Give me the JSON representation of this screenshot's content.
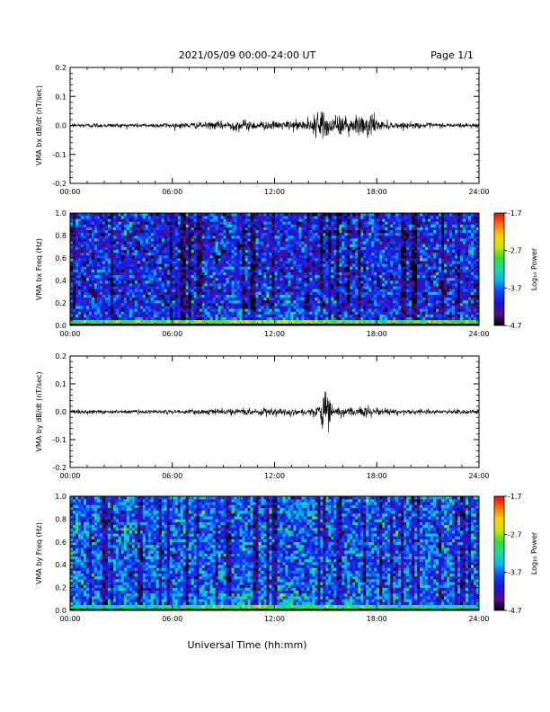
{
  "header": {
    "title": "2021/05/09  00:00-24:00 UT",
    "page": "Page 1/1"
  },
  "footer": {
    "xlabel": "Universal Time (hh:mm)"
  },
  "colors": {
    "trace": "#000000",
    "background": "#ffffff",
    "colormap": [
      "#000000",
      "#5a0a8c",
      "#1a10d8",
      "#0a40ff",
      "#00b4ff",
      "#10e0a0",
      "#30e030",
      "#c8e800",
      "#ffd000",
      "#ff7000",
      "#ff0000"
    ]
  },
  "chart_data": [
    {
      "type": "line",
      "ylabel": "VMA bx dB/dt (nT/sec)",
      "xlim": [
        0,
        24
      ],
      "ylim": [
        -0.2,
        0.2
      ],
      "x_ticks": [
        "00:00",
        "06:00",
        "12:00",
        "18:00",
        "24:00"
      ],
      "y_ticks": [
        "-0.2",
        "-0.1",
        "0.0",
        "0.1",
        "0.2"
      ],
      "series": [
        {
          "x": [
            0,
            1,
            2,
            3,
            4,
            5,
            6,
            7,
            8,
            9,
            9.5,
            10,
            11,
            11.5,
            12,
            13,
            14,
            14.5,
            15,
            15.5,
            16,
            16.5,
            17,
            17.5,
            18,
            19,
            20,
            21,
            22,
            23,
            24
          ],
          "envelope": [
            0.008,
            0.009,
            0.009,
            0.008,
            0.008,
            0.009,
            0.01,
            0.011,
            0.013,
            0.016,
            0.02,
            0.022,
            0.018,
            0.016,
            0.015,
            0.018,
            0.025,
            0.045,
            0.05,
            0.035,
            0.04,
            0.03,
            0.045,
            0.055,
            0.02,
            0.012,
            0.011,
            0.01,
            0.009,
            0.009,
            0.009
          ]
        }
      ]
    },
    {
      "type": "heatmap",
      "ylabel": "VMA bx Freq (Hz)",
      "xlim": [
        0,
        24
      ],
      "ylim": [
        0.0,
        1.0
      ],
      "x_ticks": [
        "00:00",
        "06:00",
        "12:00",
        "18:00",
        "24:00"
      ],
      "y_ticks": [
        "0.0",
        "0.2",
        "0.4",
        "0.6",
        "0.8",
        "1.0"
      ],
      "colorbar": {
        "label": "Log₁₀ Power",
        "ticks": [
          "-1.7",
          "-2.7",
          "-3.7",
          "-4.7"
        ],
        "range": [
          -4.7,
          -1.7
        ]
      },
      "background_level": -4.0,
      "lowfreq_peak_level": -2.6
    },
    {
      "type": "line",
      "ylabel": "VMA by dB/dt (nT/sec)",
      "xlim": [
        0,
        24
      ],
      "ylim": [
        -0.2,
        0.2
      ],
      "x_ticks": [
        "00:00",
        "06:00",
        "12:00",
        "18:00",
        "24:00"
      ],
      "y_ticks": [
        "-0.2",
        "-0.1",
        "0.0",
        "0.1",
        "0.2"
      ],
      "series": [
        {
          "x": [
            0,
            1,
            2,
            3,
            4,
            5,
            6,
            7,
            8,
            9,
            10,
            11,
            12,
            13,
            14,
            14.5,
            15,
            15.5,
            16,
            16.5,
            17,
            17.5,
            18,
            19,
            20,
            21,
            22,
            23,
            24
          ],
          "envelope": [
            0.008,
            0.008,
            0.008,
            0.008,
            0.008,
            0.008,
            0.009,
            0.01,
            0.01,
            0.011,
            0.013,
            0.013,
            0.016,
            0.015,
            0.014,
            0.02,
            0.075,
            0.02,
            0.016,
            0.015,
            0.016,
            0.025,
            0.013,
            0.011,
            0.01,
            0.01,
            0.009,
            0.009,
            0.009
          ]
        }
      ]
    },
    {
      "type": "heatmap",
      "ylabel": "VMA by Freq (Hz)",
      "xlim": [
        0,
        24
      ],
      "ylim": [
        0.0,
        1.0
      ],
      "x_ticks": [
        "00:00",
        "06:00",
        "12:00",
        "18:00",
        "24:00"
      ],
      "y_ticks": [
        "0.0",
        "0.2",
        "0.4",
        "0.6",
        "0.8",
        "1.0"
      ],
      "colorbar": {
        "label": "Log₁₀ Power",
        "ticks": [
          "-1.7",
          "-2.7",
          "-3.7",
          "-4.7"
        ],
        "range": [
          -4.7,
          -1.7
        ]
      },
      "background_level": -3.75,
      "lowfreq_peak_level": -2.8
    }
  ]
}
